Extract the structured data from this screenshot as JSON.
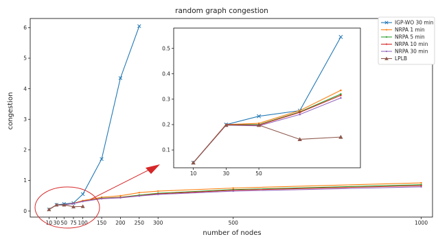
{
  "chart_data": {
    "type": "line",
    "title": "random graph congestion",
    "xlabel": "number of nodes",
    "ylabel": "congestion",
    "xlim": [
      -40,
      1030
    ],
    "ylim": [
      -0.2,
      6.3
    ],
    "xticks": [
      10,
      30,
      50,
      75,
      100,
      150,
      200,
      250,
      300,
      500,
      1000
    ],
    "yticks": [
      0,
      1,
      2,
      3,
      4,
      5,
      6
    ],
    "grid": false,
    "legend_position": "top-right",
    "series": [
      {
        "name": "IGP-WO 30 min",
        "color": "#1f77b4",
        "marker": "x",
        "x": [
          10,
          30,
          50,
          75,
          100,
          150,
          200,
          250
        ],
        "y": [
          0.05,
          0.2,
          0.23,
          0.26,
          0.55,
          1.7,
          4.35,
          6.05
        ]
      },
      {
        "name": "NRPA 1 min",
        "color": "#ff7f0e",
        "marker": "dot",
        "x": [
          10,
          30,
          50,
          75,
          100,
          150,
          200,
          250,
          300,
          500,
          1000
        ],
        "y": [
          0.05,
          0.2,
          0.2,
          0.25,
          0.34,
          0.45,
          0.5,
          0.6,
          0.65,
          0.75,
          0.92
        ]
      },
      {
        "name": "NRPA 5 min",
        "color": "#2ca02c",
        "marker": "dot",
        "x": [
          10,
          30,
          50,
          75,
          100,
          150,
          200,
          250,
          300,
          500,
          1000
        ],
        "y": [
          0.05,
          0.2,
          0.2,
          0.25,
          0.32,
          0.42,
          0.45,
          0.52,
          0.58,
          0.7,
          0.86
        ]
      },
      {
        "name": "NRPA 10 min",
        "color": "#d62728",
        "marker": "dot",
        "x": [
          10,
          30,
          50,
          75,
          100,
          150,
          200,
          250,
          300,
          500,
          1000
        ],
        "y": [
          0.05,
          0.2,
          0.2,
          0.25,
          0.32,
          0.41,
          0.44,
          0.5,
          0.56,
          0.68,
          0.83
        ]
      },
      {
        "name": "NRPA 30 min",
        "color": "#9467bd",
        "marker": "dot",
        "x": [
          10,
          30,
          50,
          75,
          100,
          150,
          200,
          250,
          300,
          500,
          1000
        ],
        "y": [
          0.05,
          0.2,
          0.2,
          0.24,
          0.31,
          0.4,
          0.43,
          0.49,
          0.54,
          0.65,
          0.79
        ]
      },
      {
        "name": "LPLB",
        "color": "#8c564b",
        "marker": "triangle",
        "x": [
          10,
          30,
          50,
          75,
          100
        ],
        "y": [
          0.05,
          0.2,
          0.2,
          0.14,
          0.15
        ]
      }
    ],
    "inset": {
      "xlim": [
        -2,
        112
      ],
      "ylim": [
        0.03,
        0.58
      ],
      "xticks": [
        10,
        30,
        50
      ],
      "yticks": [
        0.1,
        0.2,
        0.3,
        0.4,
        0.5
      ],
      "series": [
        {
          "name": "IGP-WO 30 min",
          "x": [
            10,
            30,
            50,
            75,
            100
          ],
          "y": [
            0.05,
            0.2,
            0.233,
            0.255,
            0.545
          ]
        },
        {
          "name": "NRPA 1 min",
          "x": [
            10,
            30,
            50,
            75,
            100
          ],
          "y": [
            0.05,
            0.2,
            0.205,
            0.255,
            0.335
          ]
        },
        {
          "name": "NRPA 5 min",
          "x": [
            10,
            30,
            50,
            75,
            100
          ],
          "y": [
            0.05,
            0.2,
            0.2,
            0.25,
            0.32
          ]
        },
        {
          "name": "NRPA 10 min",
          "x": [
            10,
            30,
            50,
            75,
            100
          ],
          "y": [
            0.05,
            0.2,
            0.198,
            0.248,
            0.315
          ]
        },
        {
          "name": "NRPA 30 min",
          "x": [
            10,
            30,
            50,
            75,
            100
          ],
          "y": [
            0.05,
            0.198,
            0.195,
            0.24,
            0.305
          ]
        },
        {
          "name": "LPLB",
          "x": [
            10,
            30,
            50,
            75,
            100
          ],
          "y": [
            0.05,
            0.198,
            0.198,
            0.142,
            0.151
          ]
        }
      ]
    }
  }
}
